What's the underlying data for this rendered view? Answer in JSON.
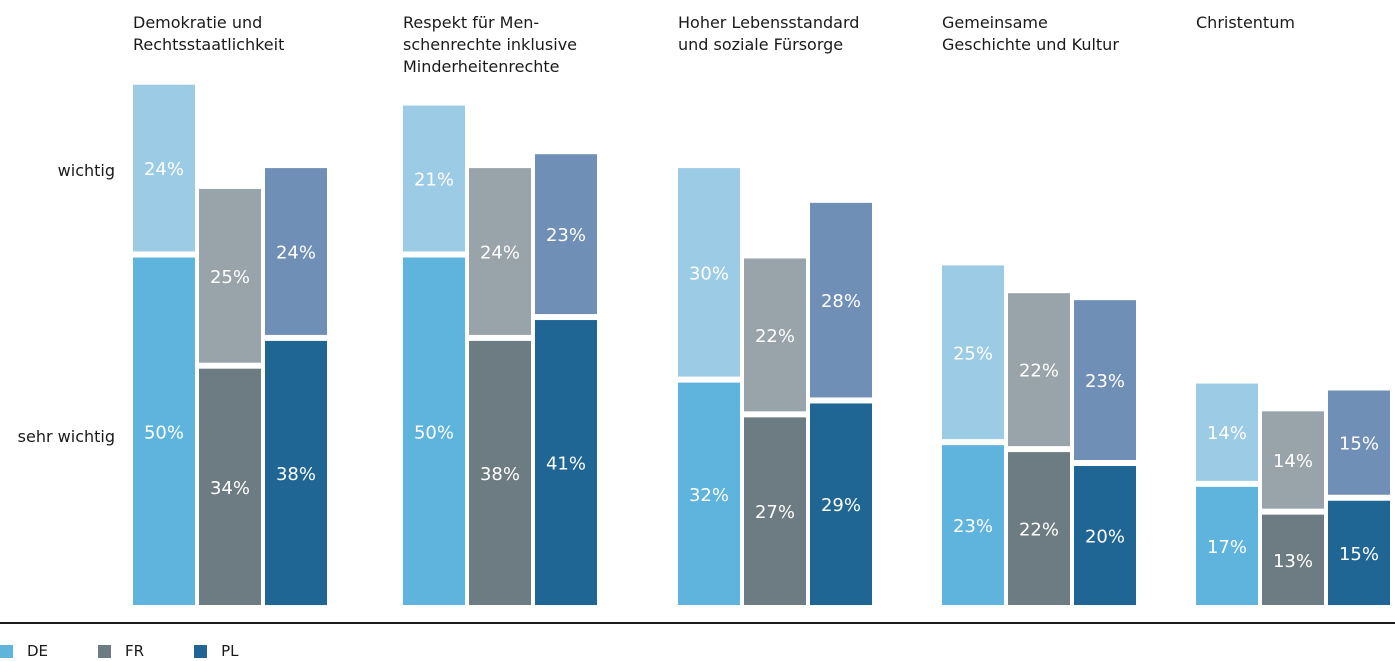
{
  "chart_data": {
    "type": "bar",
    "stacked": true,
    "categories": [
      "Demokratie und Rechtsstaatlichkeit",
      "Respekt für Menschenrechte inklusive Minderheitenrechte",
      "Hoher Lebensstandard und soziale Fürsorge",
      "Gemeinsame Geschichte und Kultur",
      "Christentum"
    ],
    "category_title_lines": [
      [
        "Demokratie und",
        "Rechtsstaatlichkeit"
      ],
      [
        "Respekt für Men-",
        "schenrechte inklusive",
        "Minderheitenrechte"
      ],
      [
        "Hoher Lebensstandard",
        "und soziale Fürsorge"
      ],
      [
        "Gemeinsame",
        "Geschichte und Kultur"
      ],
      [
        "Christentum"
      ]
    ],
    "stack_levels": [
      "sehr wichtig",
      "wichtig"
    ],
    "series": [
      {
        "name": "DE",
        "sehr_wichtig": [
          50,
          50,
          32,
          23,
          17
        ],
        "wichtig": [
          24,
          21,
          30,
          25,
          14
        ]
      },
      {
        "name": "FR",
        "sehr_wichtig": [
          34,
          38,
          27,
          22,
          13
        ],
        "wichtig": [
          25,
          24,
          22,
          22,
          14
        ]
      },
      {
        "name": "PL",
        "sehr_wichtig": [
          38,
          41,
          29,
          20,
          15
        ],
        "wichtig": [
          24,
          23,
          28,
          23,
          15
        ]
      }
    ],
    "value_suffix": "%",
    "legend_position": "bottom-left",
    "grid": false
  },
  "colors": {
    "DE": {
      "sehr_wichtig": "#5eb4dc",
      "wichtig": "#9ccbe5"
    },
    "FR": {
      "sehr_wichtig": "#6d7b82",
      "wichtig": "#98a3aa"
    },
    "PL": {
      "sehr_wichtig": "#1f6694",
      "wichtig": "#6f8fb6"
    },
    "baseline": "#1a1a1a"
  },
  "side_labels": {
    "wichtig": "wichtig",
    "sehr_wichtig": "sehr wichtig"
  },
  "legend": [
    {
      "label": "DE",
      "color": "#5eb4dc"
    },
    {
      "label": "FR",
      "color": "#6d7b82"
    },
    {
      "label": "PL",
      "color": "#1f6694"
    }
  ]
}
